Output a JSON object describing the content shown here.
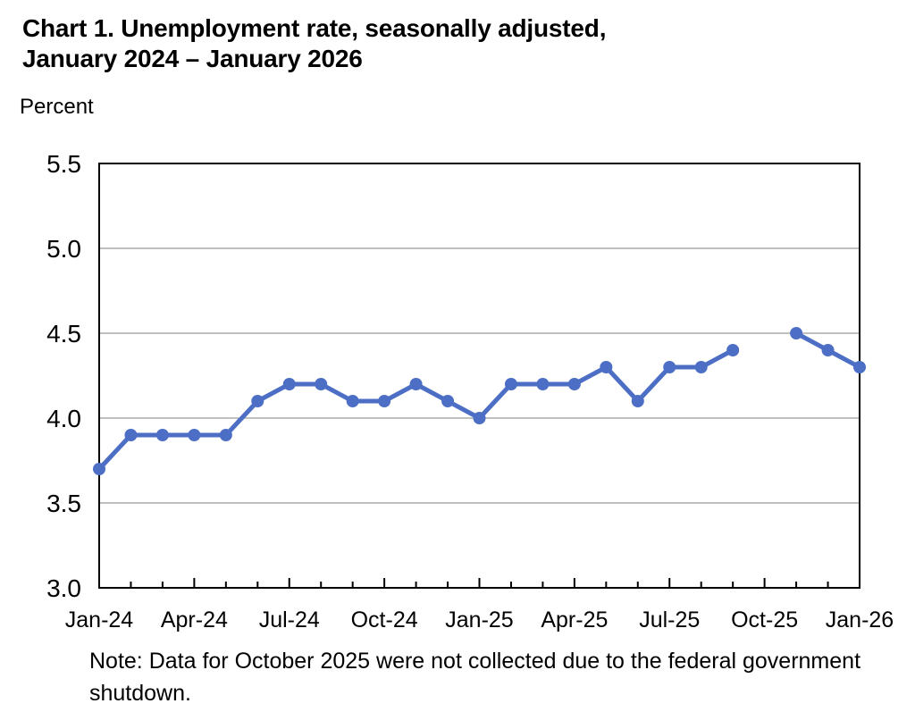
{
  "header": {
    "title_line1": "Chart 1. Unemployment rate, seasonally adjusted,",
    "title_line2": "January 2024 – January 2026",
    "unit_label": "Percent"
  },
  "footer": {
    "note": "Note: Data for October 2025 were not collected due to the federal government shutdown."
  },
  "colors": {
    "line": "#4c6ec5",
    "gridline": "#808080",
    "axis": "#000000",
    "background": "#ffffff",
    "text": "#000000"
  },
  "chart_data": {
    "type": "line",
    "title": "Chart 1. Unemployment rate, seasonally adjusted, January 2024 – January 2026",
    "xlabel": "",
    "ylabel": "Percent",
    "x": [
      "Jan-24",
      "Feb-24",
      "Mar-24",
      "Apr-24",
      "May-24",
      "Jun-24",
      "Jul-24",
      "Aug-24",
      "Sep-24",
      "Oct-24",
      "Nov-24",
      "Dec-24",
      "Jan-25",
      "Feb-25",
      "Mar-25",
      "Apr-25",
      "May-25",
      "Jun-25",
      "Jul-25",
      "Aug-25",
      "Sep-25",
      "Oct-25",
      "Nov-25",
      "Dec-25",
      "Jan-26"
    ],
    "series": [
      {
        "name": "Unemployment rate",
        "values": [
          3.7,
          3.9,
          3.9,
          3.9,
          3.9,
          4.1,
          4.2,
          4.2,
          4.1,
          4.1,
          4.2,
          4.1,
          4.0,
          4.2,
          4.2,
          4.2,
          4.3,
          4.1,
          4.3,
          4.3,
          4.4,
          null,
          4.5,
          4.4,
          4.3
        ]
      }
    ],
    "x_tick_labels": [
      "Jan-24",
      "Apr-24",
      "Jul-24",
      "Oct-24",
      "Jan-25",
      "Apr-25",
      "Jul-25",
      "Oct-25",
      "Jan-26"
    ],
    "y_ticks": [
      {
        "value": 3.0,
        "label": "3.0"
      },
      {
        "value": 3.5,
        "label": "3.5"
      },
      {
        "value": 4.0,
        "label": "4.0"
      },
      {
        "value": 4.5,
        "label": "4.5"
      },
      {
        "value": 5.0,
        "label": "5.0"
      },
      {
        "value": 5.5,
        "label": "5.5"
      }
    ],
    "ylim": [
      3.0,
      5.5
    ],
    "grid": "horizontal",
    "legend": "none",
    "marker": "circle",
    "missing_data": [
      "Oct-25"
    ]
  }
}
